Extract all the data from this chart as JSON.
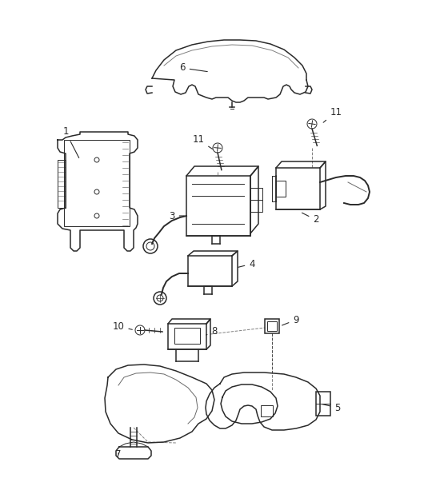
{
  "bg_color": "#ffffff",
  "line_color": "#2a2a2a",
  "label_color": "#1a1a1a",
  "fig_width": 5.45,
  "fig_height": 6.28,
  "dpi": 100
}
